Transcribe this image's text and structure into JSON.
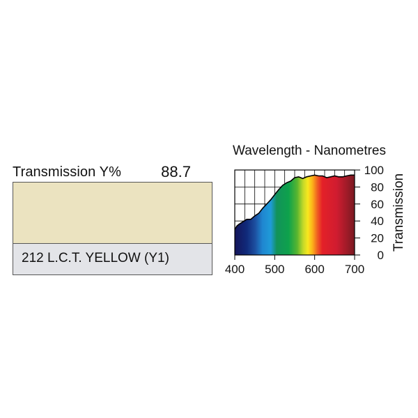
{
  "filter": {
    "transmission_label": "Transmission Y%",
    "transmission_value": "88.7",
    "name": "212 L.C.T. YELLOW (Y1)",
    "swatch_color": "#ebe3c0"
  },
  "chart_data": {
    "type": "area",
    "title": "Wavelength - Nanometres",
    "xlabel": "",
    "ylabel": "Transmission",
    "xlim": [
      400,
      700
    ],
    "ylim": [
      0,
      100
    ],
    "x_ticks": [
      "400",
      "500",
      "600",
      "700"
    ],
    "y_ticks": [
      "0",
      "20",
      "40",
      "60",
      "80",
      "100"
    ],
    "grid": true,
    "fill": "visible-spectrum",
    "series": [
      {
        "x": [
          400,
          405,
          410,
          420,
          430,
          440,
          450,
          460,
          470,
          480,
          490,
          500,
          510,
          520,
          530,
          540,
          550,
          560,
          570,
          580,
          590,
          600,
          610,
          620,
          630,
          640,
          650,
          660,
          670,
          680,
          690,
          700
        ],
        "values": [
          30,
          34,
          36,
          39,
          42,
          42,
          46,
          49,
          55,
          60,
          65,
          71,
          77,
          82,
          85,
          87,
          91,
          92,
          90,
          92,
          93,
          94,
          93,
          93,
          91,
          92,
          93,
          92,
          92,
          93,
          94,
          94
        ]
      }
    ]
  }
}
